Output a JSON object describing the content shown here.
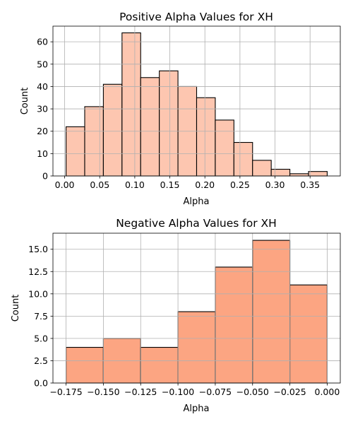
{
  "chart_data": [
    {
      "type": "bar",
      "title": "Positive Alpha Values for XH",
      "xlabel": "Alpha",
      "ylabel": "Count",
      "bin_edges": [
        0.002,
        0.0286,
        0.0552,
        0.0818,
        0.1084,
        0.135,
        0.1616,
        0.1882,
        0.2148,
        0.2414,
        0.268,
        0.2946,
        0.3212,
        0.3478,
        0.3744
      ],
      "values": [
        22,
        31,
        41,
        64,
        44,
        47,
        40,
        35,
        25,
        15,
        7,
        3,
        1,
        2
      ],
      "xlim": [
        -0.0167,
        0.3931
      ],
      "ylim": [
        0,
        67
      ],
      "xticks": [
        0.0,
        0.05,
        0.1,
        0.15,
        0.2,
        0.25,
        0.3,
        0.35
      ],
      "xtick_labels": [
        "0.00",
        "0.05",
        "0.10",
        "0.15",
        "0.20",
        "0.25",
        "0.30",
        "0.35"
      ],
      "yticks": [
        0,
        10,
        20,
        30,
        40,
        50,
        60
      ],
      "ytick_labels": [
        "0",
        "10",
        "20",
        "30",
        "40",
        "50",
        "60"
      ],
      "bar_color": "#fdc6b0",
      "edge_color": "#000000",
      "grid": true
    },
    {
      "type": "bar",
      "title": "Negative Alpha Values for XH",
      "xlabel": "Alpha",
      "ylabel": "Count",
      "bin_edges": [
        -0.175,
        -0.15,
        -0.125,
        -0.1,
        -0.075,
        -0.05,
        -0.025,
        0.0
      ],
      "values": [
        4,
        5,
        4,
        8,
        13,
        16,
        11
      ],
      "xlim": [
        -0.1838,
        0.0088
      ],
      "ylim": [
        0,
        16.8
      ],
      "xticks": [
        -0.175,
        -0.15,
        -0.125,
        -0.1,
        -0.075,
        -0.05,
        -0.025,
        0.0
      ],
      "xtick_labels": [
        "−0.175",
        "−0.150",
        "−0.125",
        "−0.100",
        "−0.075",
        "−0.050",
        "−0.025",
        "0.000"
      ],
      "yticks": [
        0,
        2.5,
        5,
        7.5,
        10,
        12.5,
        15
      ],
      "ytick_labels": [
        "0.0",
        "2.5",
        "5.0",
        "7.5",
        "10.0",
        "12.5",
        "15.0"
      ],
      "bar_color": "#fca582",
      "edge_color": "#000000",
      "grid": true
    }
  ]
}
